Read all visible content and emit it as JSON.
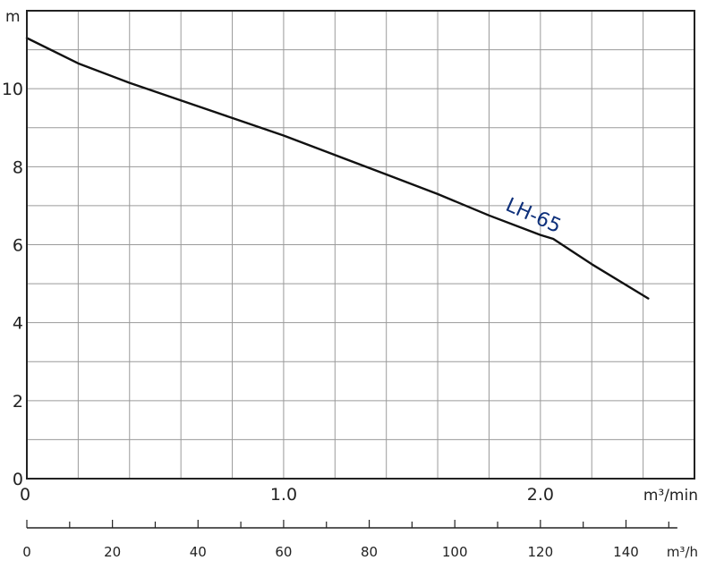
{
  "chart_data": {
    "type": "line",
    "y_unit": "m",
    "x_unit": "m³/min",
    "x2_unit": "m³/h",
    "xlim": [
      0,
      2.6
    ],
    "ylim": [
      0,
      12
    ],
    "y_ticks": [
      {
        "value": 0,
        "label": "0"
      },
      {
        "value": 2,
        "label": "2"
      },
      {
        "value": 4,
        "label": "4"
      },
      {
        "value": 6,
        "label": "6"
      },
      {
        "value": 8,
        "label": "8"
      },
      {
        "value": 10,
        "label": "10"
      }
    ],
    "x_ticks": [
      {
        "value": 0,
        "label": "0"
      },
      {
        "value": 1.0,
        "label": "1.0"
      },
      {
        "value": 2.0,
        "label": "2.0"
      }
    ],
    "x2_ticks": [
      {
        "value": 0,
        "label": "0"
      },
      {
        "value": 20,
        "label": "20"
      },
      {
        "value": 40,
        "label": "40"
      },
      {
        "value": 60,
        "label": "60"
      },
      {
        "value": 80,
        "label": "80"
      },
      {
        "value": 100,
        "label": "100"
      },
      {
        "value": 120,
        "label": "120"
      },
      {
        "value": 140,
        "label": "140"
      }
    ],
    "x2_per_x": 60,
    "grid": true,
    "series": [
      {
        "name": "LH-65",
        "color": "#0d2f7a",
        "line_color": "#111111",
        "x": [
          0,
          0.2,
          0.4,
          0.6,
          0.8,
          1.0,
          1.2,
          1.4,
          1.6,
          1.8,
          2.0,
          2.05,
          2.2,
          2.42
        ],
        "y": [
          11.3,
          10.65,
          10.15,
          9.7,
          9.25,
          8.8,
          8.3,
          7.8,
          7.3,
          6.75,
          6.25,
          6.15,
          5.5,
          4.62
        ]
      }
    ]
  }
}
